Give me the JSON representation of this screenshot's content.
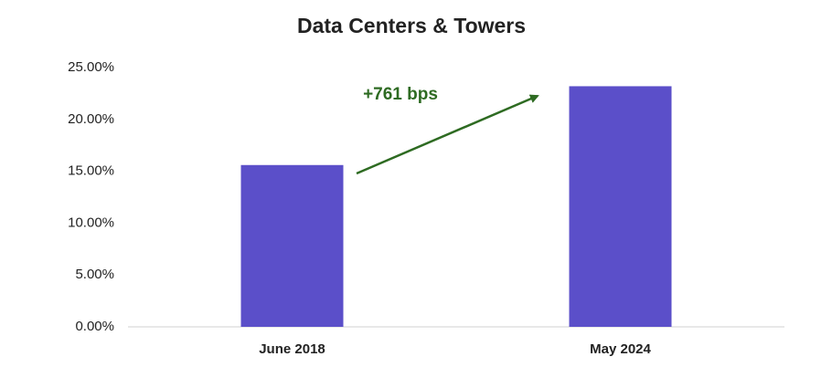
{
  "chart_data": {
    "type": "bar",
    "title": "Data Centers & Towers",
    "categories": [
      "June 2018",
      "May 2024"
    ],
    "values": [
      15.6,
      23.2
    ],
    "color": "#5b4fc9",
    "ylim": [
      0,
      25
    ],
    "yticks": [
      {
        "value": 0,
        "label": "0.00%"
      },
      {
        "value": 5,
        "label": "5.00%"
      },
      {
        "value": 10,
        "label": "10.00%"
      },
      {
        "value": 15,
        "label": "15.00%"
      },
      {
        "value": 20,
        "label": "20.00%"
      },
      {
        "value": 25,
        "label": "25.00%"
      }
    ],
    "grid": false,
    "annotation": "+761 bps"
  }
}
